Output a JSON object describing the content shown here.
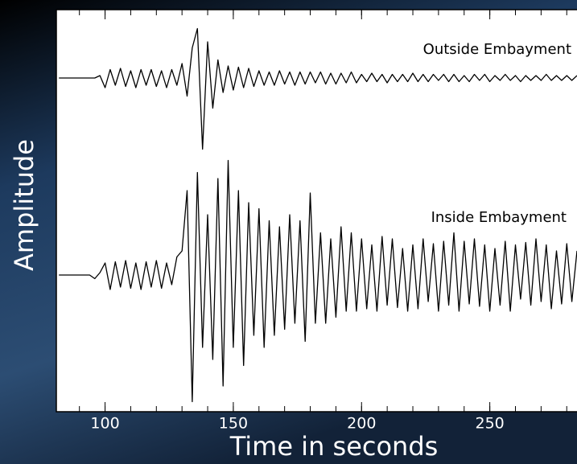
{
  "chart_data": {
    "type": "line",
    "xlabel": "Time in seconds",
    "ylabel": "Amplitude",
    "xlim": [
      81,
      284
    ],
    "xticks": [
      100,
      150,
      200,
      250
    ],
    "xminorticks": [
      90,
      100,
      110,
      120,
      130,
      140,
      150,
      160,
      170,
      180,
      190,
      200,
      210,
      220,
      230,
      240,
      250,
      260,
      270,
      280
    ],
    "x": [
      82,
      84,
      86,
      88,
      90,
      92,
      94,
      96,
      98,
      100,
      102,
      104,
      106,
      108,
      110,
      112,
      114,
      116,
      118,
      120,
      122,
      124,
      126,
      128,
      130,
      132,
      134,
      136,
      138,
      140,
      142,
      144,
      146,
      148,
      150,
      152,
      154,
      156,
      158,
      160,
      162,
      164,
      166,
      168,
      170,
      172,
      174,
      176,
      178,
      180,
      182,
      184,
      186,
      188,
      190,
      192,
      194,
      196,
      198,
      200,
      202,
      204,
      206,
      208,
      210,
      212,
      214,
      216,
      218,
      220,
      222,
      224,
      226,
      228,
      230,
      232,
      234,
      236,
      238,
      240,
      242,
      244,
      246,
      248,
      250,
      252,
      254,
      256,
      258,
      260,
      262,
      264,
      266,
      268,
      270,
      272,
      274,
      276,
      278,
      280,
      282,
      284
    ],
    "series": [
      {
        "name": "Outside Embayment",
        "color": "#000000",
        "values": [
          0,
          0,
          0,
          0,
          0,
          0,
          0,
          0,
          0.02,
          -0.08,
          0.07,
          -0.06,
          0.08,
          -0.07,
          0.06,
          -0.08,
          0.07,
          -0.06,
          0.07,
          -0.07,
          0.06,
          -0.08,
          0.07,
          -0.06,
          0.12,
          -0.15,
          0.25,
          0.41,
          -0.59,
          0.3,
          -0.25,
          0.15,
          -0.12,
          0.1,
          -0.1,
          0.09,
          -0.08,
          0.08,
          -0.07,
          0.06,
          -0.06,
          0.05,
          -0.06,
          0.06,
          -0.05,
          0.05,
          -0.06,
          0.05,
          -0.05,
          0.05,
          -0.04,
          0.05,
          -0.05,
          0.04,
          -0.05,
          0.04,
          -0.04,
          0.05,
          -0.04,
          0.03,
          -0.03,
          0.04,
          -0.03,
          0.03,
          -0.04,
          0.03,
          -0.03,
          0.03,
          -0.03,
          0.04,
          -0.03,
          0.03,
          -0.03,
          0.03,
          -0.02,
          0.03,
          -0.03,
          0.03,
          -0.03,
          0.02,
          -0.03,
          0.03,
          -0.02,
          0.03,
          -0.03,
          0.02,
          -0.02,
          0.03,
          -0.02,
          0.02,
          -0.03,
          0.02,
          -0.02,
          0.02,
          -0.02,
          0.03,
          -0.02,
          0.02,
          -0.02,
          0.02,
          -0.02,
          0.02
        ]
      },
      {
        "name": "Inside Embayment",
        "color": "#000000",
        "values": [
          0,
          0,
          0,
          0,
          0,
          0,
          0,
          -0.03,
          0.02,
          0.1,
          -0.12,
          0.11,
          -0.1,
          0.12,
          -0.11,
          0.1,
          -0.12,
          0.11,
          -0.1,
          0.12,
          -0.11,
          0.1,
          -0.08,
          0.15,
          0.2,
          0.7,
          -1.05,
          0.85,
          -0.6,
          0.5,
          -0.7,
          0.8,
          -0.92,
          0.95,
          -0.6,
          0.7,
          -0.75,
          0.6,
          -0.5,
          0.55,
          -0.6,
          0.45,
          -0.5,
          0.4,
          -0.45,
          0.5,
          -0.4,
          0.45,
          -0.55,
          0.68,
          -0.4,
          0.35,
          -0.4,
          0.3,
          -0.35,
          0.4,
          -0.3,
          0.35,
          -0.3,
          0.3,
          -0.28,
          0.25,
          -0.3,
          0.32,
          -0.25,
          0.3,
          -0.27,
          0.22,
          -0.3,
          0.25,
          -0.28,
          0.3,
          -0.22,
          0.26,
          -0.3,
          0.28,
          -0.25,
          0.35,
          -0.3,
          0.28,
          -0.24,
          0.3,
          -0.26,
          0.25,
          -0.3,
          0.22,
          -0.25,
          0.28,
          -0.3,
          0.25,
          -0.2,
          0.27,
          -0.25,
          0.3,
          -0.22,
          0.25,
          -0.28,
          0.2,
          -0.24,
          0.26,
          -0.22,
          0.2
        ]
      }
    ]
  }
}
